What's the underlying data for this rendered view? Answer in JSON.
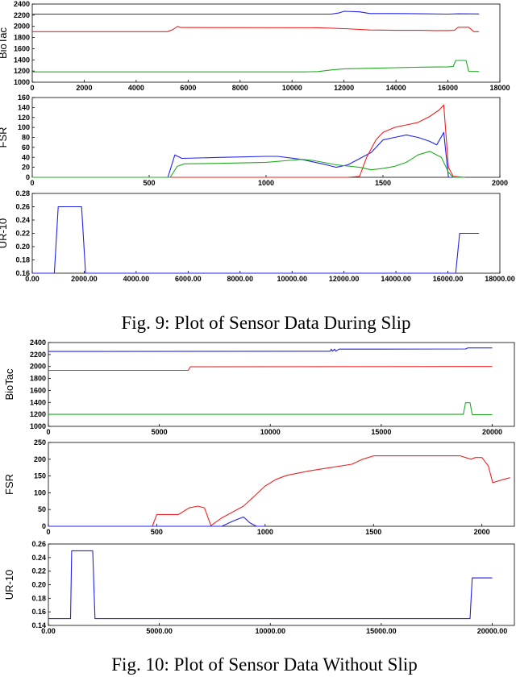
{
  "captions": {
    "fig9": "Fig. 9: Plot of Sensor Data During Slip",
    "fig10": "Fig. 10: Plot of Sensor Data Without Slip"
  },
  "chart_data": [
    {
      "type": "line",
      "ylabel": "BioTac",
      "xlim": [
        0,
        18000
      ],
      "ylim": [
        1000,
        2400
      ],
      "xticks": [
        0,
        2000,
        4000,
        6000,
        8000,
        10000,
        12000,
        14000,
        16000,
        18000
      ],
      "yticks": [
        1000,
        1200,
        1400,
        1600,
        1800,
        2000,
        2200,
        2400
      ],
      "grid": false,
      "series": [
        {
          "color": "#2222ee",
          "points": [
            [
              0,
              2220
            ],
            [
              11500,
              2220
            ],
            [
              11800,
              2240
            ],
            [
              12000,
              2270
            ],
            [
              12600,
              2260
            ],
            [
              13000,
              2230
            ],
            [
              14000,
              2230
            ],
            [
              15000,
              2225
            ],
            [
              16000,
              2220
            ],
            [
              16400,
              2225
            ],
            [
              17200,
              2222
            ]
          ]
        },
        {
          "color": "#ee2222",
          "points": [
            [
              0,
              1905
            ],
            [
              5200,
              1905
            ],
            [
              5400,
              1940
            ],
            [
              5600,
              2000
            ],
            [
              5700,
              1980
            ],
            [
              11000,
              1975
            ],
            [
              12000,
              1960
            ],
            [
              13000,
              1935
            ],
            [
              14000,
              1930
            ],
            [
              15000,
              1930
            ],
            [
              15500,
              1925
            ],
            [
              16000,
              1925
            ],
            [
              16250,
              1930
            ],
            [
              16400,
              1985
            ],
            [
              16800,
              1985
            ],
            [
              17000,
              1905
            ],
            [
              17200,
              1905
            ]
          ]
        },
        {
          "color": "#22aa22",
          "points": [
            [
              0,
              1185
            ],
            [
              10500,
              1185
            ],
            [
              11000,
              1190
            ],
            [
              11500,
              1220
            ],
            [
              12000,
              1240
            ],
            [
              13000,
              1250
            ],
            [
              14000,
              1260
            ],
            [
              15000,
              1270
            ],
            [
              16000,
              1275
            ],
            [
              16200,
              1280
            ],
            [
              16300,
              1390
            ],
            [
              16700,
              1390
            ],
            [
              16800,
              1195
            ],
            [
              17200,
              1190
            ]
          ]
        }
      ]
    },
    {
      "type": "line",
      "ylabel": "FSR",
      "xlim": [
        0,
        2000
      ],
      "ylim": [
        0,
        160
      ],
      "xticks": [
        0,
        500,
        1000,
        1500,
        2000
      ],
      "yticks": [
        0,
        20,
        40,
        60,
        80,
        100,
        120,
        140,
        160
      ],
      "grid": false,
      "series": [
        {
          "color": "#2222ee",
          "points": [
            [
              0,
              0
            ],
            [
              580,
              0
            ],
            [
              610,
              45
            ],
            [
              640,
              38
            ],
            [
              800,
              40
            ],
            [
              1000,
              42
            ],
            [
              1050,
              42
            ],
            [
              1150,
              36
            ],
            [
              1250,
              26
            ],
            [
              1300,
              20
            ],
            [
              1350,
              25
            ],
            [
              1450,
              50
            ],
            [
              1500,
              75
            ],
            [
              1550,
              80
            ],
            [
              1600,
              85
            ],
            [
              1650,
              80
            ],
            [
              1700,
              72
            ],
            [
              1730,
              65
            ],
            [
              1760,
              90
            ],
            [
              1780,
              0
            ],
            [
              1850,
              0
            ]
          ]
        },
        {
          "color": "#ee2222",
          "points": [
            [
              0,
              0
            ],
            [
              1350,
              0
            ],
            [
              1400,
              2
            ],
            [
              1430,
              40
            ],
            [
              1470,
              75
            ],
            [
              1500,
              90
            ],
            [
              1550,
              100
            ],
            [
              1600,
              105
            ],
            [
              1650,
              110
            ],
            [
              1700,
              122
            ],
            [
              1740,
              135
            ],
            [
              1760,
              145
            ],
            [
              1780,
              20
            ],
            [
              1800,
              2
            ],
            [
              1850,
              0
            ]
          ]
        },
        {
          "color": "#22aa22",
          "points": [
            [
              0,
              0
            ],
            [
              590,
              0
            ],
            [
              620,
              22
            ],
            [
              650,
              27
            ],
            [
              800,
              28
            ],
            [
              1000,
              30
            ],
            [
              1100,
              34
            ],
            [
              1150,
              36
            ],
            [
              1200,
              34
            ],
            [
              1300,
              25
            ],
            [
              1400,
              20
            ],
            [
              1450,
              15
            ],
            [
              1500,
              18
            ],
            [
              1550,
              22
            ],
            [
              1600,
              30
            ],
            [
              1650,
              45
            ],
            [
              1700,
              52
            ],
            [
              1750,
              40
            ],
            [
              1780,
              10
            ],
            [
              1800,
              0
            ],
            [
              1850,
              0
            ]
          ]
        }
      ]
    },
    {
      "type": "line",
      "ylabel": "UR-10",
      "xlim": [
        0,
        18000
      ],
      "ylim": [
        0.16,
        0.28
      ],
      "xticks": [
        0,
        2000,
        4000,
        6000,
        8000,
        10000,
        12000,
        14000,
        16000,
        18000
      ],
      "yticks": [
        0.16,
        0.18,
        0.2,
        0.22,
        0.24,
        0.26,
        0.28
      ],
      "tick_format": "%.2f",
      "grid": false,
      "series": [
        {
          "color": "#2222ee",
          "points": [
            [
              0,
              0.16
            ],
            [
              850,
              0.16
            ],
            [
              1000,
              0.26
            ],
            [
              1900,
              0.26
            ],
            [
              2050,
              0.16
            ],
            [
              16300,
              0.16
            ],
            [
              16450,
              0.22
            ],
            [
              17200,
              0.22
            ]
          ]
        }
      ]
    },
    {
      "type": "line",
      "ylabel": "BioTac",
      "xlim": [
        0,
        21000
      ],
      "ylim": [
        1000,
        2400
      ],
      "xticks": [
        0,
        5000,
        10000,
        15000,
        20000
      ],
      "yticks": [
        1000,
        1200,
        1400,
        1600,
        1800,
        2000,
        2200,
        2400
      ],
      "grid": false,
      "series": [
        {
          "color": "#2222ee",
          "points": [
            [
              0,
              2250
            ],
            [
              12500,
              2255
            ],
            [
              12700,
              2255
            ],
            [
              12750,
              2290
            ],
            [
              12800,
              2255
            ],
            [
              12900,
              2290
            ],
            [
              12950,
              2255
            ],
            [
              13100,
              2290
            ],
            [
              15000,
              2290
            ],
            [
              18800,
              2292
            ],
            [
              18900,
              2310
            ],
            [
              20000,
              2310
            ]
          ]
        },
        {
          "color": "#ee2222",
          "points": [
            [
              0,
              1935
            ],
            [
              6300,
              1935
            ],
            [
              6400,
              1995
            ],
            [
              18800,
              2000
            ],
            [
              20000,
              2000
            ]
          ]
        },
        {
          "color": "#22aa22",
          "points": [
            [
              0,
              1200
            ],
            [
              18700,
              1200
            ],
            [
              18800,
              1395
            ],
            [
              19000,
              1395
            ],
            [
              19100,
              1195
            ],
            [
              20000,
              1195
            ]
          ]
        }
      ]
    },
    {
      "type": "line",
      "ylabel": "FSR",
      "xlim": [
        0,
        2150
      ],
      "ylim": [
        0,
        250
      ],
      "xticks": [
        0,
        500,
        1000,
        1500,
        2000
      ],
      "yticks": [
        0,
        50,
        100,
        150,
        200,
        250
      ],
      "grid": false,
      "series": [
        {
          "color": "#ee2222",
          "points": [
            [
              0,
              0
            ],
            [
              480,
              0
            ],
            [
              500,
              35
            ],
            [
              600,
              35
            ],
            [
              650,
              55
            ],
            [
              690,
              60
            ],
            [
              720,
              55
            ],
            [
              750,
              2
            ],
            [
              800,
              25
            ],
            [
              900,
              60
            ],
            [
              950,
              90
            ],
            [
              1000,
              120
            ],
            [
              1050,
              140
            ],
            [
              1100,
              152
            ],
            [
              1200,
              165
            ],
            [
              1300,
              175
            ],
            [
              1400,
              185
            ],
            [
              1450,
              200
            ],
            [
              1500,
              210
            ],
            [
              1600,
              210
            ],
            [
              1700,
              210
            ],
            [
              1800,
              210
            ],
            [
              1900,
              210
            ],
            [
              1950,
              200
            ],
            [
              1970,
              205
            ],
            [
              2000,
              205
            ],
            [
              2030,
              180
            ],
            [
              2050,
              130
            ],
            [
              2100,
              140
            ],
            [
              2130,
              145
            ]
          ]
        },
        {
          "color": "#2222ee",
          "points": [
            [
              0,
              0
            ],
            [
              800,
              0
            ],
            [
              850,
              15
            ],
            [
              900,
              28
            ],
            [
              930,
              10
            ],
            [
              960,
              0
            ],
            [
              1000,
              0
            ]
          ]
        }
      ]
    },
    {
      "type": "line",
      "ylabel": "UR-10",
      "xlim": [
        0,
        21000
      ],
      "ylim": [
        0.14,
        0.26
      ],
      "xticks": [
        0,
        5000,
        10000,
        15000,
        20000
      ],
      "yticks": [
        0.14,
        0.16,
        0.18,
        0.2,
        0.22,
        0.24,
        0.26
      ],
      "tick_format": "%.2f",
      "grid": false,
      "series": [
        {
          "color": "#2222ee",
          "points": [
            [
              0,
              0.15
            ],
            [
              1000,
              0.15
            ],
            [
              1050,
              0.25
            ],
            [
              2000,
              0.25
            ],
            [
              2100,
              0.15
            ],
            [
              19000,
              0.15
            ],
            [
              19100,
              0.21
            ],
            [
              20000,
              0.21
            ]
          ]
        }
      ]
    }
  ]
}
